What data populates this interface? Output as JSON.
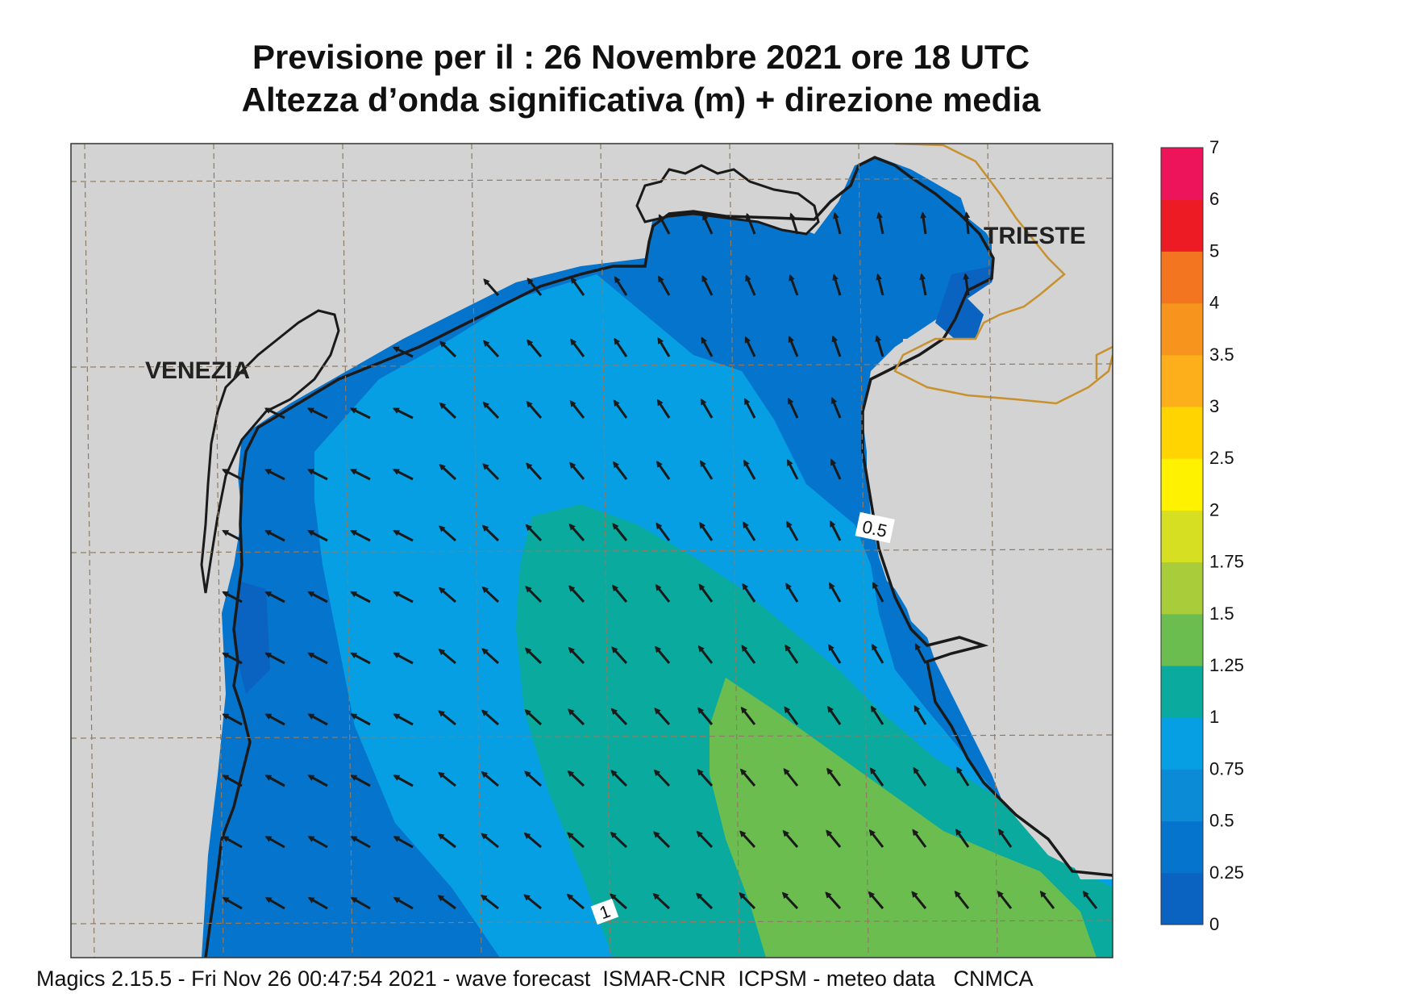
{
  "title": {
    "line1": "Previsione per il  :  26 Novembre  2021   ore 18 UTC",
    "line2": "Altezza d’onda significativa (m) + direzione media"
  },
  "cities": [
    {
      "name": "VENEZIA"
    },
    {
      "name": "TRIESTE"
    }
  ],
  "contour_labels": [
    "0.5",
    "1"
  ],
  "legend": {
    "levels": [
      "0",
      "0.25",
      "0.5",
      "0.75",
      "1",
      "1.25",
      "1.5",
      "1.75",
      "2",
      "2.5",
      "3",
      "3.5",
      "4",
      "5",
      "6",
      "7"
    ],
    "colors": [
      "#0a63c1",
      "#0574cd",
      "#0b8ad6",
      "#069fe3",
      "#0aab9e",
      "#6cbd4f",
      "#a8cc3a",
      "#d6df22",
      "#fff200",
      "#ffd400",
      "#fcae1b",
      "#f7941d",
      "#f47520",
      "#ed1c24",
      "#ed145b"
    ]
  },
  "colors": {
    "land": "#d3d3d3",
    "coast": "#1a1a1a",
    "border": "#c8912e",
    "arrow": "#1a1a1a"
  },
  "footer": "Magics 2.15.5 - Fri Nov 26 00:47:54 2021 - wave forecast  ISMAR-CNR  ICPSM - meteo data   CNMCA"
}
